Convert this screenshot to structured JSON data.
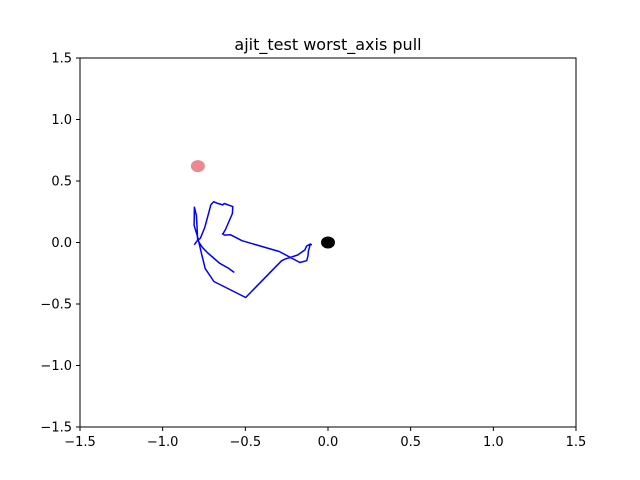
{
  "chart_data": {
    "type": "line",
    "title": "ajit_test worst_axis pull",
    "xlabel": "",
    "ylabel": "",
    "xlim": [
      -1.5,
      1.5
    ],
    "ylim": [
      -1.5,
      1.5
    ],
    "xticks": [
      -1.5,
      -1.0,
      -0.5,
      0.0,
      0.5,
      1.0,
      1.5
    ],
    "yticks": [
      -1.5,
      -1.0,
      -0.5,
      0.0,
      0.5,
      1.0,
      1.5
    ],
    "xtick_labels": [
      "−1.5",
      "−1.0",
      "−0.5",
      "0.0",
      "0.5",
      "1.0",
      "1.5"
    ],
    "ytick_labels": [
      "−1.5",
      "−1.0",
      "−0.5",
      "0.0",
      "0.5",
      "1.0",
      "1.5"
    ],
    "grid": false,
    "series": [
      {
        "color": "#0000ff",
        "x": [
          -0.807,
          -0.792,
          -0.772,
          -0.745,
          -0.708,
          -0.692,
          -0.667,
          -0.637,
          -0.627,
          -0.576,
          -0.578,
          -0.62,
          -0.634,
          -0.638,
          -0.625,
          -0.589,
          -0.52,
          -0.295,
          -0.17,
          -0.129,
          -0.121,
          -0.119,
          -0.108,
          -0.105,
          -0.101,
          -0.11,
          -0.13,
          -0.14,
          -0.183,
          -0.261,
          -0.281,
          -0.498,
          -0.69,
          -0.743,
          -0.764,
          -0.789,
          -0.81,
          -0.808,
          -0.796,
          -0.792,
          -0.789,
          -0.778,
          -0.76,
          -0.727,
          -0.692,
          -0.656,
          -0.603,
          -0.57
        ],
        "y": [
          -0.015,
          0.014,
          0.035,
          0.123,
          0.307,
          0.332,
          0.318,
          0.306,
          0.317,
          0.292,
          0.236,
          0.106,
          0.075,
          0.07,
          0.06,
          0.063,
          0.015,
          -0.073,
          -0.163,
          -0.148,
          -0.109,
          -0.075,
          -0.019,
          -0.012,
          -0.018,
          -0.015,
          -0.03,
          -0.06,
          -0.102,
          -0.136,
          -0.149,
          -0.447,
          -0.317,
          -0.212,
          -0.097,
          0.046,
          0.14,
          0.287,
          0.22,
          0.117,
          0.023,
          -0.003,
          -0.039,
          -0.085,
          -0.126,
          -0.168,
          -0.208,
          -0.241
        ]
      }
    ],
    "markers": [
      {
        "name": "start",
        "x": -0.787,
        "y": 0.621,
        "color": "#e8737f"
      },
      {
        "name": "origin",
        "x": 0.0,
        "y": 0.0,
        "color": "#000000"
      }
    ]
  }
}
